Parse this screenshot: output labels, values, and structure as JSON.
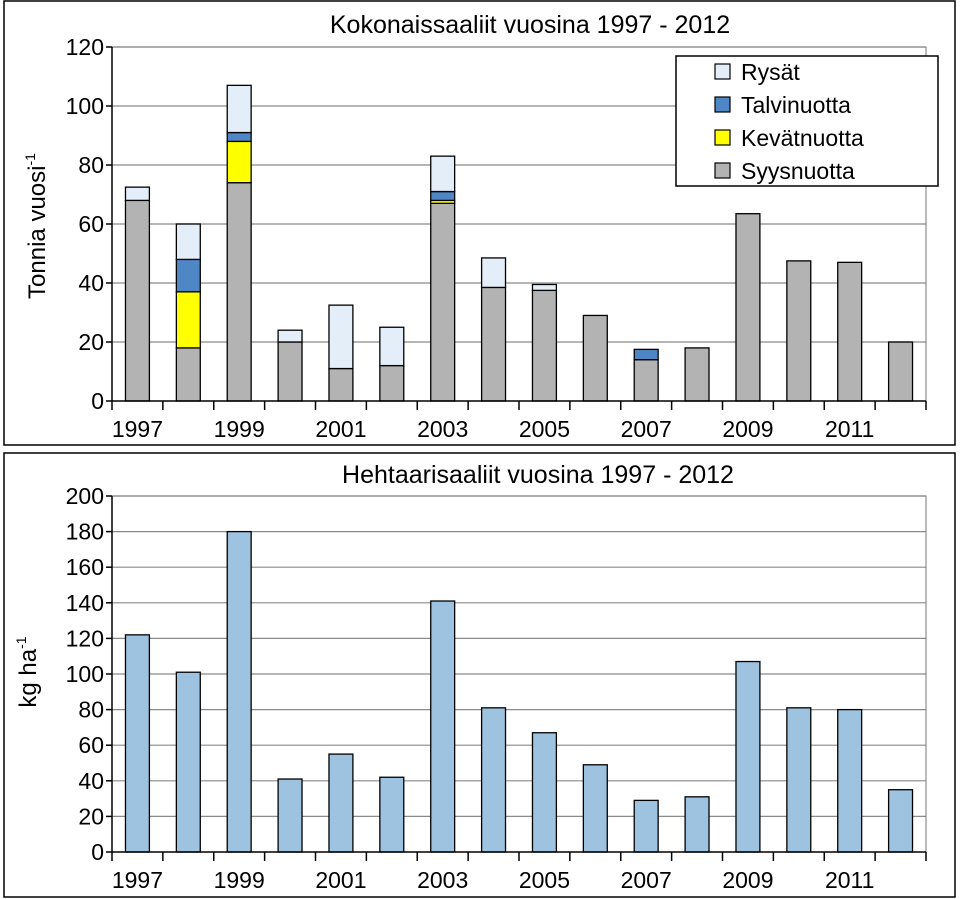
{
  "chart_data": [
    {
      "type": "bar",
      "stacked": true,
      "title": "Kokonaissaaliit vuosina 1997 - 2012",
      "ylabel_main": "Tonnia vuosi",
      "ylabel_sup": "-1",
      "xlabel": "",
      "ylim": [
        0,
        120
      ],
      "yticks": [
        0,
        20,
        40,
        60,
        80,
        100,
        120
      ],
      "categories": [
        "1997",
        "1998",
        "1999",
        "2000",
        "2001",
        "2002",
        "2003",
        "2004",
        "2005",
        "2006",
        "2007",
        "2008",
        "2009",
        "2010",
        "2011",
        "2012"
      ],
      "xtick_labels": [
        "1997",
        "",
        "1999",
        "",
        "2001",
        "",
        "2003",
        "",
        "2005",
        "",
        "2007",
        "",
        "2009",
        "",
        "2011",
        ""
      ],
      "grid": true,
      "legend_position": "top-right",
      "series": [
        {
          "name": "Syysnuotta",
          "color": "#b3b3b3",
          "values": [
            68,
            18,
            74,
            20,
            11,
            12,
            67,
            38.5,
            37.5,
            29,
            14,
            18,
            63.5,
            47.5,
            47,
            20
          ]
        },
        {
          "name": "Kevätnuotta",
          "color": "#ffff00",
          "values": [
            0,
            19,
            14,
            0,
            0,
            0,
            1,
            0,
            0,
            0,
            0,
            0,
            0,
            0,
            0,
            0
          ]
        },
        {
          "name": "Talvinuotta",
          "color": "#4f86c6",
          "values": [
            0,
            11,
            3,
            0,
            0,
            0,
            3,
            0,
            0,
            0,
            3.5,
            0,
            0,
            0,
            0,
            0
          ]
        },
        {
          "name": "Rysät",
          "color": "#e3eef8",
          "values": [
            4.5,
            12,
            16,
            4,
            21.5,
            13,
            12,
            10,
            2,
            0,
            0,
            0,
            0,
            0,
            0,
            0
          ]
        }
      ],
      "legend_order": [
        "Rysät",
        "Talvinuotta",
        "Kevätnuotta",
        "Syysnuotta"
      ]
    },
    {
      "type": "bar",
      "title": "Hehtaarisaaliit vuosina 1997 - 2012",
      "ylabel_main": "kg ha",
      "ylabel_sup": "-1",
      "xlabel": "",
      "ylim": [
        0,
        200
      ],
      "yticks": [
        0,
        20,
        40,
        60,
        80,
        100,
        120,
        140,
        160,
        180,
        200
      ],
      "categories": [
        "1997",
        "1998",
        "1999",
        "2000",
        "2001",
        "2002",
        "2003",
        "2004",
        "2005",
        "2006",
        "2007",
        "2008",
        "2009",
        "2010",
        "2011",
        "2012"
      ],
      "xtick_labels": [
        "1997",
        "",
        "1999",
        "",
        "2001",
        "",
        "2003",
        "",
        "2005",
        "",
        "2007",
        "",
        "2009",
        "",
        "2011",
        ""
      ],
      "grid": true,
      "color": "#9dc3e0",
      "values": [
        122,
        101,
        180,
        41,
        55,
        42,
        141,
        81,
        67,
        49,
        29,
        31,
        107,
        81,
        80,
        35
      ]
    }
  ]
}
